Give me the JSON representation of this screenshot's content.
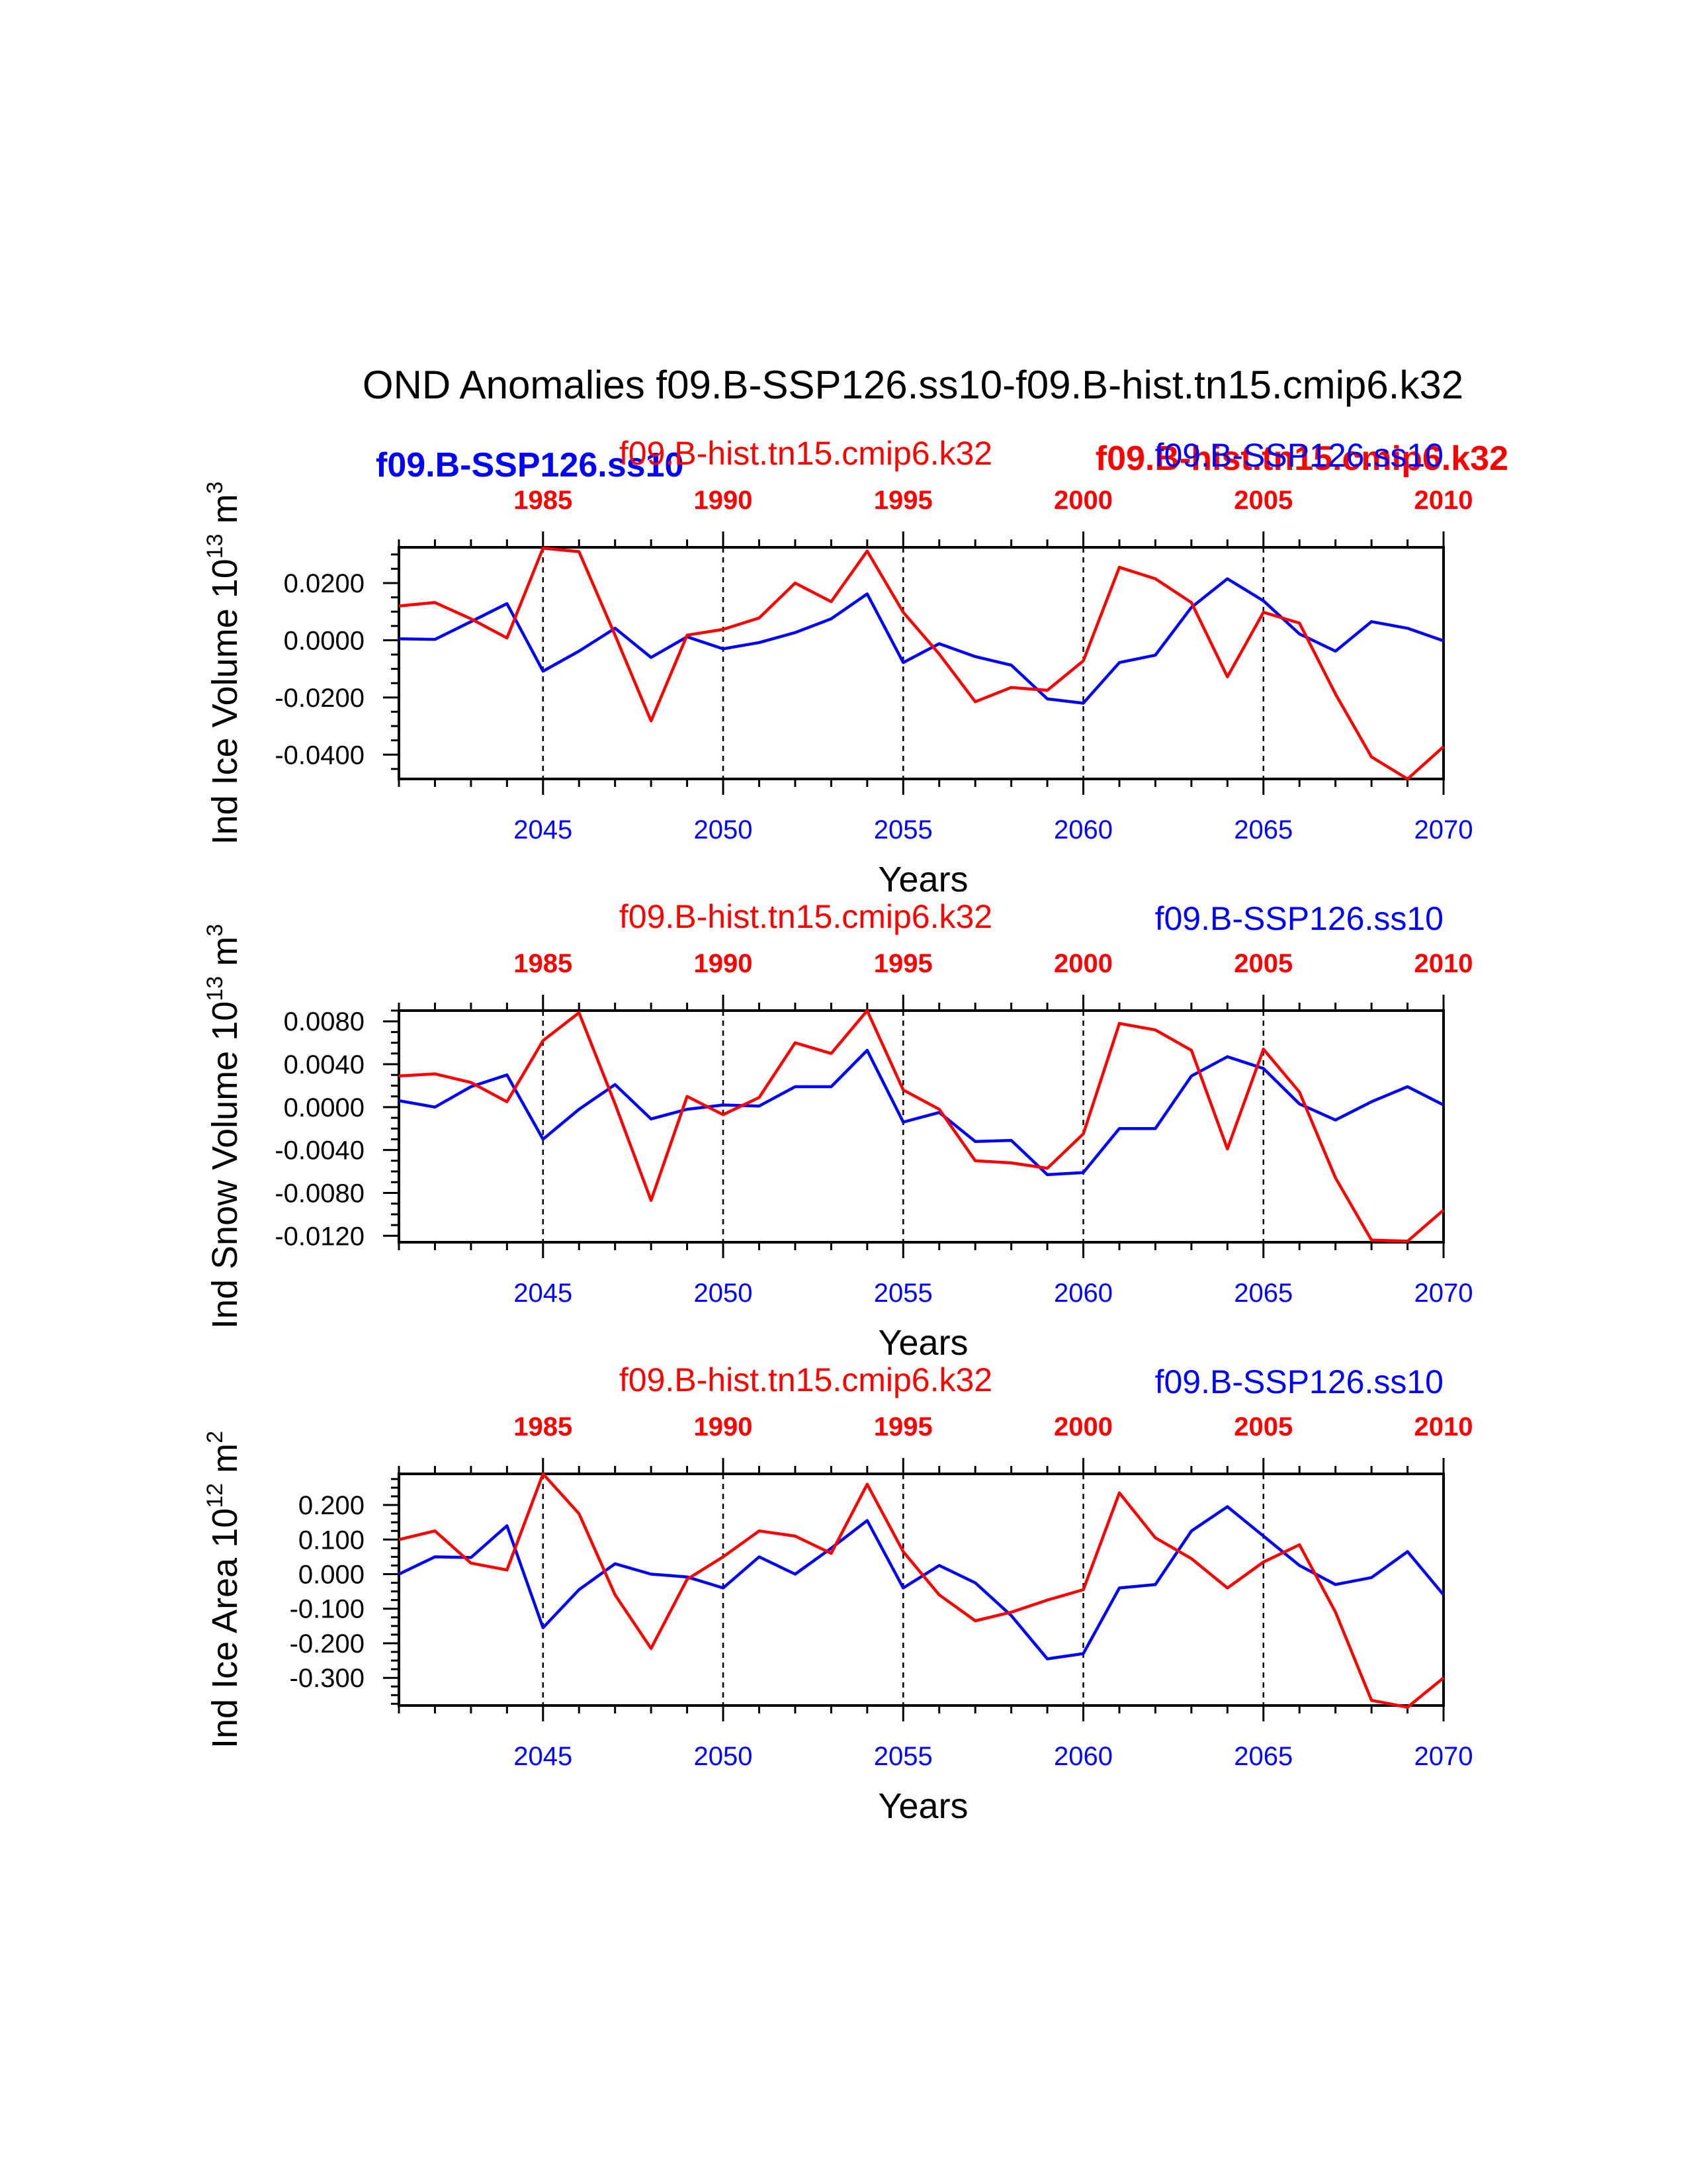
{
  "title": "OND Anomalies f09.B-SSP126.ss10-f09.B-hist.tn15.cmip6.k32",
  "overlay_labels": {
    "ssp_bold": "f09.B-SSP126.ss10",
    "hist_bold": "f09.B-hist.tn15.cmip6.k32"
  },
  "chart_data": [
    {
      "type": "line",
      "ylabel": "Ind Ice Volume 10",
      "ylabel_exp": "13",
      "ylabel_unit": "m",
      "ylabel_unit_exp": "3",
      "xlabel": "Years",
      "xlim": [
        2041,
        2070
      ],
      "ylim": [
        -0.0485,
        0.0325
      ],
      "yticks": [
        0.02,
        0.0,
        -0.02,
        -0.04
      ],
      "ytick_labels": [
        "0.0200",
        "0.0000",
        "-0.0200",
        "-0.0400"
      ],
      "xticks": [
        2045,
        2050,
        2055,
        2060,
        2065,
        2070
      ],
      "xtick_labels": [
        "2045",
        "2050",
        "2055",
        "2060",
        "2065",
        "2070"
      ],
      "top_xticks": [
        1985,
        1990,
        1995,
        2000,
        2005,
        2010
      ],
      "top_xtick_labels": [
        "1985",
        "1990",
        "1995",
        "2000",
        "2005",
        "2010"
      ],
      "hist_label": "f09.B-hist.tn15.cmip6.k32",
      "ssp_label": "f09.B-SSP126.ss10",
      "series": [
        {
          "color": "#0000ff",
          "x": [
            2041,
            2042,
            2043,
            2044,
            2045,
            2046,
            2047,
            2048,
            2049,
            2050,
            2051,
            2052,
            2053,
            2054,
            2055,
            2056,
            2057,
            2058,
            2059,
            2060,
            2061,
            2062,
            2063,
            2064,
            2065,
            2066,
            2067,
            2068,
            2069,
            2070
          ],
          "values": [
            0.0005,
            0.0003,
            0.0065,
            0.0128,
            -0.0108,
            -0.0038,
            0.0042,
            -0.006,
            0.0012,
            -0.003,
            -0.0008,
            0.0027,
            0.0075,
            0.0162,
            -0.0078,
            -0.0012,
            -0.0057,
            -0.0087,
            -0.0205,
            -0.022,
            -0.0078,
            -0.0052,
            0.0115,
            0.0215,
            0.0138,
            0.0022,
            -0.0038,
            0.0065,
            0.0042,
            -0.0002
          ]
        },
        {
          "color": "#ff0000",
          "x": [
            2041,
            2042,
            2043,
            2044,
            2045,
            2046,
            2047,
            2048,
            2049,
            2050,
            2051,
            2052,
            2053,
            2054,
            2055,
            2056,
            2057,
            2058,
            2059,
            2060,
            2061,
            2062,
            2063,
            2064,
            2065,
            2066,
            2067,
            2068,
            2069,
            2070
          ],
          "values": [
            0.012,
            0.0132,
            0.0075,
            0.0008,
            0.0322,
            0.031,
            0.0018,
            -0.0282,
            0.0018,
            0.0038,
            0.0078,
            0.02,
            0.0135,
            0.0312,
            0.0098,
            -0.0048,
            -0.0215,
            -0.0165,
            -0.0175,
            -0.0072,
            0.0255,
            0.0215,
            0.0132,
            -0.0128,
            0.0098,
            0.006,
            -0.0188,
            -0.0408,
            -0.0485,
            -0.0372
          ]
        }
      ]
    },
    {
      "type": "line",
      "ylabel": "Ind Snow Volume 10",
      "ylabel_exp": "13",
      "ylabel_unit": "m",
      "ylabel_unit_exp": "3",
      "xlabel": "Years",
      "xlim": [
        2041,
        2070
      ],
      "ylim": [
        -0.0126,
        0.009
      ],
      "yticks": [
        0.008,
        0.004,
        0.0,
        -0.004,
        -0.008,
        -0.012
      ],
      "ytick_labels": [
        "0.0080",
        "0.0040",
        "0.0000",
        "-0.0040",
        "-0.0080",
        "-0.0120"
      ],
      "xticks": [
        2045,
        2050,
        2055,
        2060,
        2065,
        2070
      ],
      "xtick_labels": [
        "2045",
        "2050",
        "2055",
        "2060",
        "2065",
        "2070"
      ],
      "top_xticks": [
        1985,
        1990,
        1995,
        2000,
        2005,
        2010
      ],
      "top_xtick_labels": [
        "1985",
        "1990",
        "1995",
        "2000",
        "2005",
        "2010"
      ],
      "hist_label": "f09.B-hist.tn15.cmip6.k32",
      "ssp_label": "f09.B-SSP126.ss10",
      "series": [
        {
          "color": "#0000ff",
          "x": [
            2041,
            2042,
            2043,
            2044,
            2045,
            2046,
            2047,
            2048,
            2049,
            2050,
            2051,
            2052,
            2053,
            2054,
            2055,
            2056,
            2057,
            2058,
            2059,
            2060,
            2061,
            2062,
            2063,
            2064,
            2065,
            2066,
            2067,
            2068,
            2069,
            2070
          ],
          "values": [
            0.0006,
            0.0,
            0.0019,
            0.003,
            -0.003,
            -0.0002,
            0.0021,
            -0.0011,
            -0.0002,
            0.0002,
            0.0001,
            0.0019,
            0.0019,
            0.0053,
            -0.0014,
            -0.0005,
            -0.0032,
            -0.0031,
            -0.0063,
            -0.0061,
            -0.002,
            -0.002,
            0.0029,
            0.0047,
            0.0036,
            0.0003,
            -0.0012,
            0.0005,
            0.0019,
            0.0002
          ]
        },
        {
          "color": "#ff0000",
          "x": [
            2041,
            2042,
            2043,
            2044,
            2045,
            2046,
            2047,
            2048,
            2049,
            2050,
            2051,
            2052,
            2053,
            2054,
            2055,
            2056,
            2057,
            2058,
            2059,
            2060,
            2061,
            2062,
            2063,
            2064,
            2065,
            2066,
            2067,
            2068,
            2069,
            2070
          ],
          "values": [
            0.0029,
            0.0031,
            0.0023,
            0.0005,
            0.0062,
            0.0088,
            0.0003,
            -0.0087,
            0.001,
            -0.0007,
            0.0009,
            0.006,
            0.005,
            0.009,
            0.0016,
            -0.0002,
            -0.005,
            -0.0052,
            -0.0057,
            -0.0025,
            0.0078,
            0.0072,
            0.0053,
            -0.0039,
            0.0054,
            0.0014,
            -0.0066,
            -0.0124,
            -0.0125,
            -0.0096
          ]
        }
      ]
    },
    {
      "type": "line",
      "ylabel": "Ind Ice Area 10",
      "ylabel_exp": "12",
      "ylabel_unit": "m",
      "ylabel_unit_exp": "2",
      "xlabel": "Years",
      "xlim": [
        2041,
        2070
      ],
      "ylim": [
        -0.38,
        0.29
      ],
      "yticks": [
        0.2,
        0.1,
        0.0,
        -0.1,
        -0.2,
        -0.3
      ],
      "ytick_labels": [
        "0.200",
        "0.100",
        "0.000",
        "-0.100",
        "-0.200",
        "-0.300"
      ],
      "xticks": [
        2045,
        2050,
        2055,
        2060,
        2065,
        2070
      ],
      "xtick_labels": [
        "2045",
        "2050",
        "2055",
        "2060",
        "2065",
        "2070"
      ],
      "top_xticks": [
        1985,
        1990,
        1995,
        2000,
        2005,
        2010
      ],
      "top_xtick_labels": [
        "1985",
        "1990",
        "1995",
        "2000",
        "2005",
        "2010"
      ],
      "hist_label": "f09.B-hist.tn15.cmip6.k32",
      "ssp_label": "f09.B-SSP126.ss10",
      "series": [
        {
          "color": "#0000ff",
          "x": [
            2041,
            2042,
            2043,
            2044,
            2045,
            2046,
            2047,
            2048,
            2049,
            2050,
            2051,
            2052,
            2053,
            2054,
            2055,
            2056,
            2057,
            2058,
            2059,
            2060,
            2061,
            2062,
            2063,
            2064,
            2065,
            2066,
            2067,
            2068,
            2069,
            2070
          ],
          "values": [
            0.0,
            0.05,
            0.048,
            0.14,
            -0.155,
            -0.045,
            0.03,
            0.0,
            -0.008,
            -0.04,
            0.05,
            0.0,
            0.075,
            0.155,
            -0.04,
            0.025,
            -0.025,
            -0.12,
            -0.245,
            -0.23,
            -0.04,
            -0.03,
            0.125,
            0.195,
            0.11,
            0.025,
            -0.03,
            -0.01,
            0.065,
            -0.06
          ]
        },
        {
          "color": "#ff0000",
          "x": [
            2041,
            2042,
            2043,
            2044,
            2045,
            2046,
            2047,
            2048,
            2049,
            2050,
            2051,
            2052,
            2053,
            2054,
            2055,
            2056,
            2057,
            2058,
            2059,
            2060,
            2061,
            2062,
            2063,
            2064,
            2065,
            2066,
            2067,
            2068,
            2069,
            2070
          ],
          "values": [
            0.1,
            0.125,
            0.032,
            0.012,
            0.29,
            0.175,
            -0.06,
            -0.215,
            -0.015,
            0.05,
            0.125,
            0.11,
            0.06,
            0.26,
            0.065,
            -0.06,
            -0.135,
            -0.11,
            -0.075,
            -0.045,
            0.235,
            0.105,
            0.045,
            -0.04,
            0.035,
            0.085,
            -0.11,
            -0.365,
            -0.385,
            -0.3
          ]
        }
      ]
    }
  ]
}
